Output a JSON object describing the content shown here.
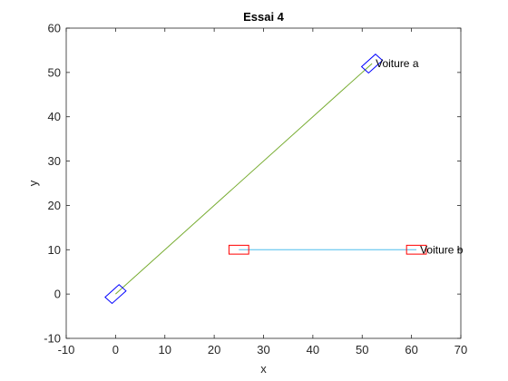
{
  "chart_data": {
    "type": "line",
    "title": "Essai 4",
    "xlabel": "x",
    "ylabel": "y",
    "xlim": [
      -10,
      70
    ],
    "ylim": [
      -10,
      60
    ],
    "xticks": [
      -10,
      0,
      10,
      20,
      30,
      40,
      50,
      60,
      70
    ],
    "yticks": [
      -10,
      0,
      10,
      20,
      30,
      40,
      50,
      60
    ],
    "grid": false,
    "series": [
      {
        "x": [
          0,
          52
        ],
        "y": [
          0,
          52
        ],
        "color": "#77AC30"
      },
      {
        "x": [
          25,
          61
        ],
        "y": [
          10,
          10
        ],
        "color": "#4DBEEE"
      }
    ],
    "vehicles": [
      {
        "cx": 52,
        "cy": 52,
        "angle_deg": 45,
        "length": 4,
        "width": 2,
        "color": "#0000FF",
        "label": "Voiture a"
      },
      {
        "cx": 0,
        "cy": 0,
        "angle_deg": 45,
        "length": 4,
        "width": 2,
        "color": "#0000FF",
        "label": ""
      },
      {
        "cx": 25,
        "cy": 10,
        "angle_deg": 0,
        "length": 4,
        "width": 2,
        "color": "#FF0000",
        "label": ""
      },
      {
        "cx": 61,
        "cy": 10,
        "angle_deg": 0,
        "length": 4,
        "width": 2,
        "color": "#FF0000",
        "label": "Voiture b"
      }
    ]
  }
}
